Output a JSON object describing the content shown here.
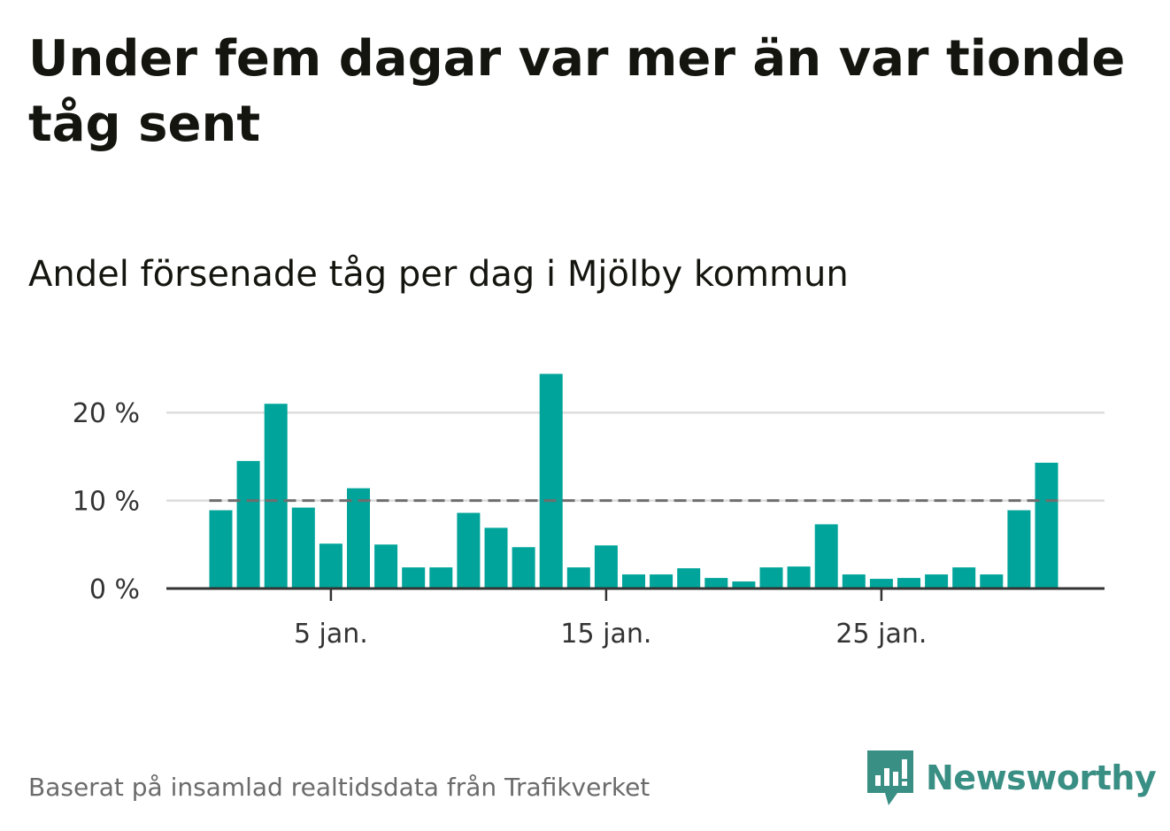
{
  "title": "Under fem dagar var mer än var tionde tåg sent",
  "subtitle": "Andel försenade tåg per dag i Mjölby kommun",
  "source": "Baserat på insamlad realtidsdata från Trafikverket",
  "brand": {
    "name": "Newsworthy",
    "icon": "newsworthy-logo-icon",
    "color": "#3a8f84"
  },
  "colors": {
    "bar": "#00a49a",
    "grid": "#dddddd",
    "axis": "#333333",
    "reference": "#6e6e6e"
  },
  "chart_data": {
    "type": "bar",
    "x": [
      1,
      2,
      3,
      4,
      5,
      6,
      7,
      8,
      9,
      10,
      11,
      12,
      13,
      14,
      15,
      16,
      17,
      18,
      19,
      20,
      21,
      22,
      23,
      24,
      25,
      26,
      27,
      28,
      29,
      30,
      31
    ],
    "values": [
      8.9,
      14.5,
      21.0,
      9.2,
      5.1,
      11.4,
      5.0,
      2.4,
      2.4,
      8.6,
      6.9,
      4.7,
      24.4,
      2.4,
      4.9,
      1.6,
      1.6,
      2.3,
      1.2,
      0.8,
      2.4,
      2.5,
      7.3,
      1.6,
      1.1,
      1.2,
      1.6,
      2.4,
      1.6,
      8.9,
      14.3
    ],
    "ylim": [
      0,
      25
    ],
    "yticks": [
      0,
      10,
      20
    ],
    "ytick_labels": [
      "0 %",
      "10 %",
      "20 %"
    ],
    "xticks": [
      5,
      15,
      25
    ],
    "xtick_labels": [
      "5 jan.",
      "15 jan.",
      "25 jan."
    ],
    "reference_line": 10,
    "grid": true
  }
}
